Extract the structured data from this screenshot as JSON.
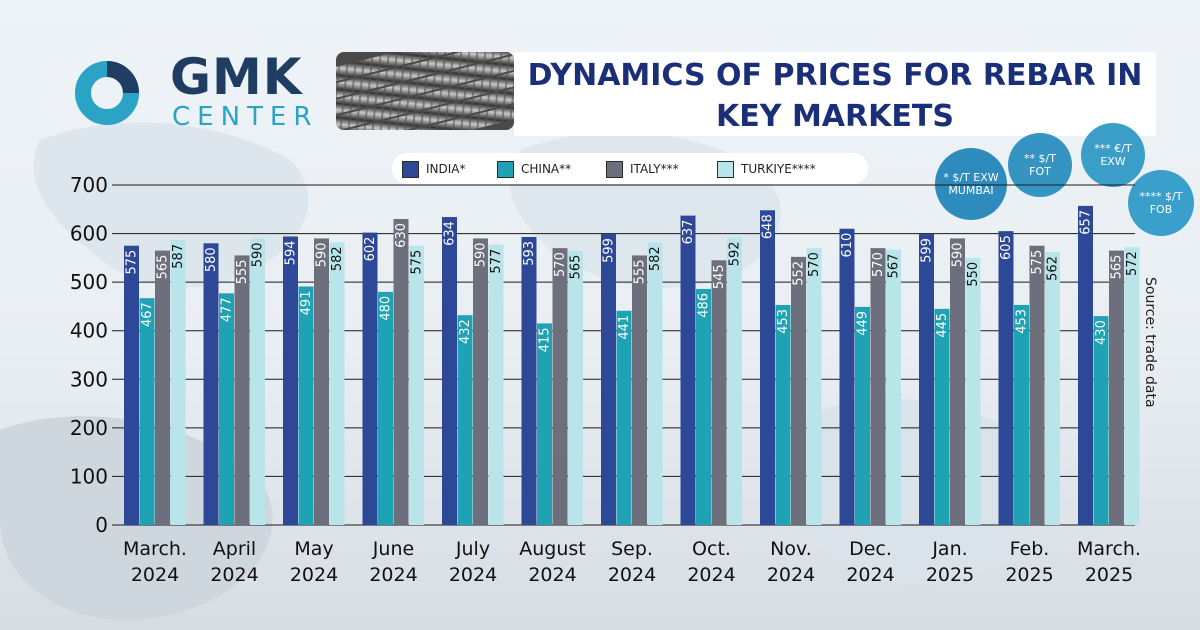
{
  "brand": {
    "name": "GMK",
    "sub": "CENTER"
  },
  "title_line1": "DYNAMICS OF PRICES FOR REBAR IN",
  "title_line2": "KEY MARKETS",
  "source": "Source: trade data",
  "legend": [
    {
      "label": "INDIA*",
      "color": "#2d4896"
    },
    {
      "label": "CHINA**",
      "color": "#1fa2b4"
    },
    {
      "label": "ITALY***",
      "color": "#6d6f7d"
    },
    {
      "label": "TURKIYE****",
      "color": "#b9e4ea"
    }
  ],
  "badges": [
    {
      "line1": "* $/T EXW",
      "line2": "MUMBAI",
      "color": "#2d8bbd"
    },
    {
      "line1": "** $/T",
      "line2": "FOT",
      "color": "#3594c1"
    },
    {
      "line1": "*** €/T",
      "line2": "EXW",
      "color": "#3a9ec8"
    },
    {
      "line1": "**** $/T",
      "line2": "FOB",
      "color": "#3aa0cb"
    }
  ],
  "chart_data": {
    "type": "bar",
    "categories": [
      "March. 2024",
      "April 2024",
      "May 2024",
      "June 2024",
      "July 2024",
      "August 2024",
      "Sep. 2024",
      "Oct. 2024",
      "Nov. 2024",
      "Dec. 2024",
      "Jan. 2025",
      "Feb. 2025",
      "March. 2025"
    ],
    "category_lines": [
      [
        "March.",
        "2024"
      ],
      [
        "April",
        "2024"
      ],
      [
        "May",
        "2024"
      ],
      [
        "June",
        "2024"
      ],
      [
        "July",
        "2024"
      ],
      [
        "August",
        "2024"
      ],
      [
        "Sep.",
        "2024"
      ],
      [
        "Oct.",
        "2024"
      ],
      [
        "Nov.",
        "2024"
      ],
      [
        "Dec.",
        "2024"
      ],
      [
        "Jan.",
        "2025"
      ],
      [
        "Feb.",
        "2025"
      ],
      [
        "March.",
        "2025"
      ]
    ],
    "series": [
      {
        "name": "INDIA*",
        "values": [
          575,
          580,
          594,
          602,
          634,
          593,
          599,
          637,
          648,
          610,
          599,
          605,
          657
        ]
      },
      {
        "name": "CHINA**",
        "values": [
          467,
          477,
          491,
          480,
          432,
          415,
          441,
          486,
          453,
          449,
          445,
          453,
          430
        ]
      },
      {
        "name": "ITALY***",
        "values": [
          565,
          555,
          590,
          630,
          590,
          570,
          555,
          545,
          552,
          570,
          590,
          575,
          565
        ]
      },
      {
        "name": "TURKIYE****",
        "values": [
          587,
          590,
          582,
          575,
          577,
          565,
          582,
          592,
          570,
          567,
          550,
          562,
          572
        ]
      }
    ],
    "yticks": [
      0,
      100,
      200,
      300,
      400,
      500,
      600,
      700
    ],
    "ylim": [
      0,
      700
    ],
    "grid": true
  }
}
